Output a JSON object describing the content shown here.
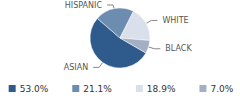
{
  "chart_data": {
    "type": "pie",
    "categories": [
      "ASIAN",
      "HISPANIC",
      "WHITE",
      "BLACK"
    ],
    "values": [
      53.0,
      21.1,
      18.9,
      7.0
    ],
    "value_labels": [
      "53.0%",
      "21.1%",
      "18.9%",
      "7.0%"
    ],
    "colors": [
      "#2e5b8c",
      "#6d8db0",
      "#d9dfeb",
      "#a3afc4"
    ],
    "legend": "bottom"
  }
}
